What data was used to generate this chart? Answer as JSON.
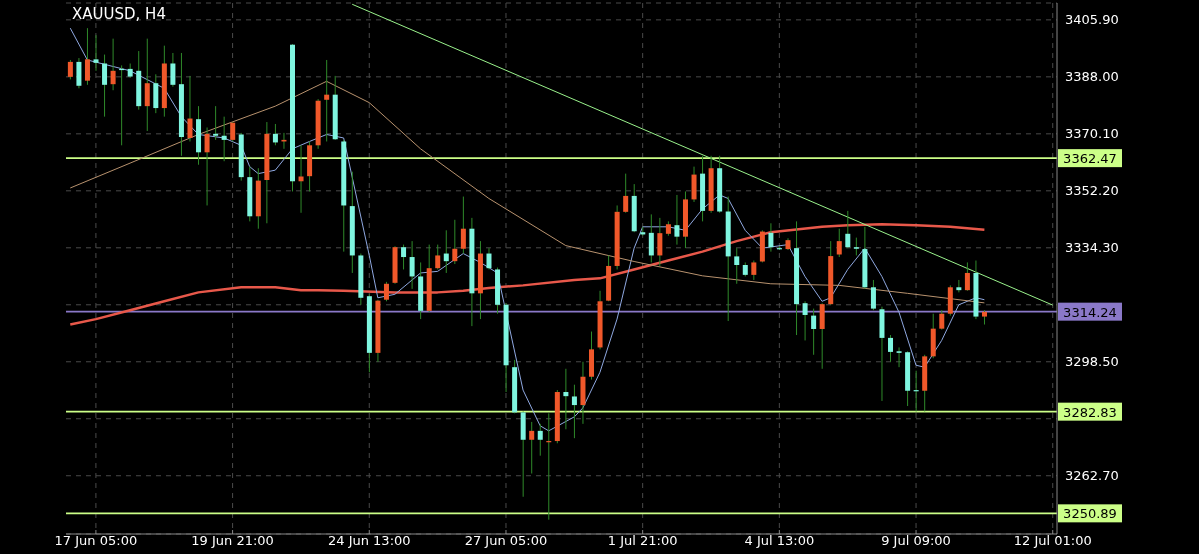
{
  "chart_data": {
    "type": "candlestick",
    "title": "XAUUSD, H4",
    "categories": [
      null,
      null,
      null,
      "17 Jun 05:00",
      null,
      null,
      null,
      null,
      null,
      null,
      null,
      null,
      null,
      null,
      null,
      null,
      null,
      null,
      null,
      "19 Jun 21:00",
      null,
      null,
      null,
      null,
      null,
      null,
      null,
      null,
      null,
      null,
      null,
      null,
      null,
      null,
      null,
      "24 Jun 13:00",
      null,
      null,
      null,
      null,
      null,
      null,
      null,
      null,
      null,
      null,
      null,
      null,
      null,
      null,
      null,
      "27 Jun 05:00",
      null,
      null,
      null,
      null,
      null,
      null,
      null,
      null,
      null,
      null,
      null,
      null,
      null,
      null,
      null,
      "1 Jul 21:00",
      null,
      null,
      null,
      null,
      null,
      null,
      null,
      null,
      null,
      null,
      null,
      null,
      null,
      null,
      null,
      "4 Jul 13:00",
      null,
      null,
      null,
      null,
      null,
      null,
      null,
      null,
      null,
      null,
      null,
      null,
      null,
      null,
      null,
      "9 Jul 09:00",
      null,
      null,
      null,
      null,
      null,
      null,
      null,
      null,
      null,
      null,
      null,
      null,
      null,
      null,
      null,
      "12 Jul 01:00"
    ],
    "ohlc": [
      [
        3388.0,
        3393.3,
        3387.2,
        3392.7
      ],
      [
        3392.7,
        3393.9,
        3384.4,
        3385.2
      ],
      [
        3386.8,
        3403.3,
        3385.5,
        3393.5
      ],
      [
        3393.5,
        3401.1,
        3389.9,
        3392.4
      ],
      [
        3392.2,
        3395.0,
        3375.5,
        3385.5
      ],
      [
        3385.7,
        3400.0,
        3383.8,
        3389.9
      ],
      [
        3390.5,
        3391.6,
        3366.5,
        3390.2
      ],
      [
        3390.5,
        3392.2,
        3387.7,
        3388.1
      ],
      [
        3389.9,
        3396.1,
        3377.7,
        3378.8
      ],
      [
        3378.8,
        3400.0,
        3371.0,
        3386.0
      ],
      [
        3386.0,
        3388.8,
        3376.6,
        3378.2
      ],
      [
        3378.2,
        3397.8,
        3375.5,
        3392.2
      ],
      [
        3392.2,
        3395.5,
        3384.9,
        3385.5
      ],
      [
        3385.7,
        3395.5,
        3363.2,
        3369.1
      ],
      [
        3368.8,
        3388.3,
        3367.7,
        3374.9
      ],
      [
        3374.7,
        3378.8,
        3360.4,
        3364.3
      ],
      [
        3364.3,
        3372.1,
        3347.6,
        3370.1
      ],
      [
        3370.1,
        3378.8,
        3368.2,
        3369.5
      ],
      [
        3369.5,
        3375.5,
        3361.5,
        3368.2
      ],
      [
        3368.2,
        3373.8,
        3367.7,
        3373.6
      ],
      [
        3369.9,
        3370.4,
        3355.4,
        3356.5
      ],
      [
        3356.5,
        3359.8,
        3342.6,
        3344.2
      ],
      [
        3344.2,
        3359.3,
        3340.3,
        3355.4
      ],
      [
        3355.6,
        3373.8,
        3342.0,
        3370.1
      ],
      [
        3370.1,
        3373.2,
        3366.5,
        3367.4
      ],
      [
        3367.7,
        3370.4,
        3365.4,
        3368.2
      ],
      [
        3398.1,
        3398.3,
        3352.0,
        3355.2
      ],
      [
        3355.2,
        3366.5,
        3345.3,
        3356.7
      ],
      [
        3356.8,
        3367.7,
        3352.0,
        3366.5
      ],
      [
        3366.5,
        3381.0,
        3365.4,
        3380.5
      ],
      [
        3380.8,
        3393.3,
        3367.7,
        3382.4
      ],
      [
        3382.4,
        3388.3,
        3368.2,
        3368.4
      ],
      [
        3367.7,
        3368.2,
        3333.1,
        3347.6
      ],
      [
        3347.4,
        3358.2,
        3326.4,
        3331.9
      ],
      [
        3331.9,
        3332.5,
        3316.4,
        3318.6
      ],
      [
        3319.1,
        3319.7,
        3295.2,
        3301.3
      ],
      [
        3301.3,
        3318.0,
        3298.5,
        3317.7
      ],
      [
        3318.0,
        3323.6,
        3317.5,
        3323.0
      ],
      [
        3323.3,
        3334.8,
        3323.0,
        3334.5
      ],
      [
        3334.5,
        3335.3,
        3327.5,
        3331.4
      ],
      [
        3331.4,
        3336.4,
        3321.4,
        3325.3
      ],
      [
        3325.3,
        3329.7,
        3311.9,
        3314.5
      ],
      [
        3314.5,
        3335.3,
        3314.1,
        3327.9
      ],
      [
        3327.9,
        3335.3,
        3327.5,
        3331.9
      ],
      [
        3332.5,
        3339.8,
        3326.4,
        3330.1
      ],
      [
        3330.1,
        3343.1,
        3329.2,
        3334.0
      ],
      [
        3334.0,
        3350.4,
        3332.5,
        3340.3
      ],
      [
        3340.3,
        3343.7,
        3309.7,
        3320.0
      ],
      [
        3320.0,
        3336.4,
        3311.9,
        3332.5
      ],
      [
        3332.5,
        3334.2,
        3327.5,
        3327.9
      ],
      [
        3327.5,
        3328.1,
        3313.6,
        3316.4
      ],
      [
        3316.4,
        3316.9,
        3289.0,
        3297.4
      ],
      [
        3296.8,
        3299.1,
        3282.3,
        3282.6
      ],
      [
        3282.6,
        3282.9,
        3256.1,
        3274.0
      ],
      [
        3274.0,
        3279.6,
        3263.4,
        3276.8
      ],
      [
        3276.8,
        3279.0,
        3269.0,
        3274.0
      ],
      [
        3273.4,
        3282.3,
        3248.9,
        3273.6
      ],
      [
        3273.6,
        3289.6,
        3272.9,
        3289.0
      ],
      [
        3289.0,
        3296.3,
        3277.3,
        3287.7
      ],
      [
        3287.6,
        3291.3,
        3274.5,
        3284.9
      ],
      [
        3284.9,
        3298.5,
        3279.0,
        3293.8
      ],
      [
        3293.8,
        3308.0,
        3292.9,
        3302.4
      ],
      [
        3303.0,
        3320.8,
        3302.4,
        3317.5
      ],
      [
        3317.7,
        3331.9,
        3317.5,
        3328.6
      ],
      [
        3328.6,
        3347.6,
        3327.5,
        3345.6
      ],
      [
        3345.6,
        3357.6,
        3345.3,
        3350.6
      ],
      [
        3350.6,
        3354.3,
        3339.2,
        3339.5
      ],
      [
        3339.2,
        3340.9,
        3338.1,
        3338.5
      ],
      [
        3339.0,
        3344.8,
        3329.7,
        3331.9
      ],
      [
        3331.9,
        3343.7,
        3328.6,
        3338.9
      ],
      [
        3338.7,
        3342.6,
        3338.1,
        3341.7
      ],
      [
        3341.4,
        3350.9,
        3335.3,
        3337.8
      ],
      [
        3337.8,
        3352.0,
        3334.2,
        3349.5
      ],
      [
        3349.5,
        3359.8,
        3348.7,
        3357.3
      ],
      [
        3357.6,
        3363.2,
        3342.6,
        3345.9
      ],
      [
        3345.9,
        3363.2,
        3345.3,
        3359.3
      ],
      [
        3359.3,
        3363.2,
        3345.3,
        3345.7
      ],
      [
        3345.7,
        3350.4,
        3311.3,
        3331.6
      ],
      [
        3331.6,
        3334.2,
        3323.0,
        3328.9
      ],
      [
        3328.9,
        3329.7,
        3325.3,
        3325.8
      ],
      [
        3325.8,
        3330.3,
        3324.2,
        3329.7
      ],
      [
        3330.0,
        3339.8,
        3329.7,
        3339.4
      ],
      [
        3339.0,
        3342.0,
        3333.1,
        3334.5
      ],
      [
        3334.2,
        3334.8,
        3333.6,
        3333.9
      ],
      [
        3333.9,
        3337.3,
        3333.6,
        3336.7
      ],
      [
        3334.2,
        3342.6,
        3306.9,
        3316.6
      ],
      [
        3316.9,
        3317.5,
        3305.2,
        3313.2
      ],
      [
        3313.0,
        3315.2,
        3300.7,
        3308.8
      ],
      [
        3308.8,
        3316.9,
        3296.3,
        3316.6
      ],
      [
        3316.6,
        3336.4,
        3316.4,
        3331.7
      ],
      [
        3332.2,
        3340.3,
        3331.4,
        3336.4
      ],
      [
        3338.7,
        3345.9,
        3334.2,
        3334.5
      ],
      [
        3334.5,
        3337.5,
        3331.9,
        3334.0
      ],
      [
        3333.9,
        3340.9,
        3321.4,
        3321.9
      ],
      [
        3321.9,
        3324.2,
        3314.7,
        3315.2
      ],
      [
        3315.0,
        3315.8,
        3286.2,
        3306.0
      ],
      [
        3306.0,
        3306.9,
        3298.5,
        3301.6
      ],
      [
        3301.8,
        3303.0,
        3296.8,
        3301.3
      ],
      [
        3301.5,
        3301.8,
        3284.6,
        3289.4
      ],
      [
        3289.6,
        3295.7,
        3282.9,
        3289.4
      ],
      [
        3289.4,
        3300.7,
        3282.9,
        3300.2
      ],
      [
        3300.2,
        3313.6,
        3299.6,
        3308.9
      ],
      [
        3308.9,
        3314.7,
        3308.6,
        3313.6
      ],
      [
        3313.6,
        3322.5,
        3313.0,
        3321.9
      ],
      [
        3321.9,
        3324.2,
        3320.3,
        3321.0
      ],
      [
        3321.0,
        3329.7,
        3320.8,
        3326.4
      ],
      [
        3326.4,
        3330.3,
        3311.9,
        3312.7
      ],
      [
        3312.7,
        3314.7,
        3310.2,
        3314.2
      ],
      null,
      null,
      null,
      null,
      null,
      null,
      null,
      null
    ],
    "colors": [
      "#f0582a",
      "#7ff5e0",
      "#f0582a",
      "#7ff5e0",
      "#7ff5e0",
      "#f0582a",
      "#7ff5e0",
      "#7ff5e0",
      "#7ff5e0",
      "#f0582a",
      "#7ff5e0",
      "#f0582a",
      "#7ff5e0",
      "#7ff5e0",
      "#f0582a",
      "#7ff5e0",
      "#f0582a",
      "#7ff5e0",
      "#7ff5e0",
      "#f0582a",
      "#7ff5e0",
      "#7ff5e0",
      "#f0582a",
      "#f0582a",
      "#7ff5e0",
      "#f0582a",
      "#7ff5e0",
      "#f0582a",
      "#f0582a",
      "#f0582a",
      "#f0582a",
      "#7ff5e0",
      "#7ff5e0",
      "#7ff5e0",
      "#7ff5e0",
      "#7ff5e0",
      "#f0582a",
      "#f0582a",
      "#f0582a",
      "#7ff5e0",
      "#7ff5e0",
      "#7ff5e0",
      "#f0582a",
      "#f0582a",
      "#7ff5e0",
      "#f0582a",
      "#f0582a",
      "#7ff5e0",
      "#f0582a",
      "#7ff5e0",
      "#7ff5e0",
      "#7ff5e0",
      "#7ff5e0",
      "#7ff5e0",
      "#f0582a",
      "#7ff5e0",
      "#f0582a",
      "#f0582a",
      "#7ff5e0",
      "#7ff5e0",
      "#f0582a",
      "#f0582a",
      "#f0582a",
      "#f0582a",
      "#f0582a",
      "#f0582a",
      "#7ff5e0",
      "#7ff5e0",
      "#7ff5e0",
      "#f0582a",
      "#f0582a",
      "#7ff5e0",
      "#f0582a",
      "#f0582a",
      "#7ff5e0",
      "#f0582a",
      "#7ff5e0",
      "#7ff5e0",
      "#7ff5e0",
      "#7ff5e0",
      "#f0582a",
      "#f0582a",
      "#7ff5e0",
      "#7ff5e0",
      "#f0582a",
      "#7ff5e0",
      "#7ff5e0",
      "#7ff5e0",
      "#f0582a",
      "#f0582a",
      "#f0582a",
      "#7ff5e0",
      "#7ff5e0",
      "#7ff5e0",
      "#7ff5e0",
      "#7ff5e0",
      "#7ff5e0",
      "#7ff5e0",
      "#7ff5e0",
      "#7ff5e0",
      "#f0582a",
      "#f0582a",
      "#f0582a",
      "#f0582a",
      "#7ff5e0",
      "#f0582a",
      "#7ff5e0",
      "#f0582a",
      null,
      null,
      null,
      null,
      null,
      null,
      null,
      null
    ],
    "series": [
      {
        "type": "line",
        "color": "#e8584a",
        "values": [
          3310.2,
          null,
          null,
          3311.9,
          null,
          null,
          null,
          3314.7,
          null,
          null,
          null,
          3317.5,
          null,
          null,
          null,
          3320.3,
          null,
          null,
          null,
          null,
          3321.9,
          null,
          null,
          null,
          3321.9,
          null,
          null,
          3321.0,
          null,
          3321.0,
          null,
          null,
          3320.8,
          null,
          null,
          null,
          null,
          null,
          3320.3,
          null,
          null,
          null,
          null,
          3320.3,
          null,
          null,
          3320.8,
          null,
          null,
          3321.7,
          null,
          null,
          null,
          3322.5,
          null,
          null,
          null,
          null,
          null,
          3324.2,
          null,
          null,
          3324.7,
          null,
          null,
          null,
          3327.5,
          null,
          null,
          null,
          3330.3,
          null,
          null,
          null,
          3333.1,
          null,
          null,
          null,
          3336.4,
          null,
          null,
          null,
          3339.2,
          null,
          null,
          null,
          null,
          null,
          3340.9,
          null,
          null,
          3341.4,
          null,
          null,
          null,
          3341.7,
          null,
          null,
          null,
          3341.4,
          null,
          null,
          null,
          3340.9,
          null,
          null,
          null,
          3340.0,
          null,
          null,
          null,
          null,
          null,
          null,
          null,
          null
        ]
      },
      {
        "type": "line",
        "color": "#8fa8e0",
        "values": [
          3403.3,
          null,
          3393.3,
          null,
          null,
          null,
          null,
          3389.9,
          null,
          null,
          null,
          3384.4,
          null,
          3375.5,
          null,
          3369.9,
          null,
          null,
          3368.8,
          null,
          3366.5,
          3359.8,
          3357.6,
          null,
          3358.7,
          null,
          3365.4,
          null,
          3367.7,
          null,
          3369.9,
          null,
          3368.8,
          3356.5,
          null,
          3331.9,
          3318.6,
          null,
          3319.7,
          null,
          null,
          3326.4,
          null,
          3326.9,
          null,
          null,
          3332.5,
          null,
          3329.7,
          null,
          3326.4,
          null,
          null,
          3289.6,
          null,
          3278.4,
          3276.8,
          null,
          null,
          3281.2,
          3284.0,
          null,
          3295.2,
          null,
          3311.9,
          null,
          3334.2,
          3340.9,
          null,
          null,
          3340.9,
          null,
          3339.8,
          null,
          3346.5,
          null,
          3350.9,
          3349.8,
          null,
          3339.8,
          null,
          3334.2,
          null,
          null,
          3335.3,
          null,
          3325.3,
          null,
          3317.5,
          3318.6,
          null,
          3327.5,
          null,
          3334.2,
          null,
          3325.3,
          null,
          3314.1,
          null,
          3297.4,
          3296.8,
          null,
          3305.2,
          null,
          3316.4,
          null,
          3318.6,
          3318.0,
          null,
          null,
          null,
          null,
          null,
          null,
          null,
          null
        ]
      },
      {
        "type": "line",
        "color": "#b8926e",
        "values": [
          3353.1,
          null,
          null,
          null,
          null,
          null,
          null,
          3360.9,
          null,
          null,
          null,
          null,
          null,
          null,
          null,
          3369.9,
          null,
          null,
          null,
          null,
          null,
          null,
          null,
          null,
          3378.8,
          null,
          null,
          null,
          null,
          null,
          3386.6,
          null,
          null,
          null,
          null,
          3379.9,
          null,
          null,
          null,
          null,
          null,
          3365.4,
          null,
          null,
          null,
          null,
          null,
          null,
          null,
          3349.8,
          null,
          null,
          null,
          null,
          null,
          null,
          null,
          null,
          3335.0,
          null,
          null,
          null,
          null,
          null,
          null,
          null,
          3330.0,
          null,
          null,
          null,
          null,
          null,
          null,
          null,
          3325.5,
          null,
          null,
          null,
          null,
          null,
          null,
          null,
          3323.0,
          null,
          null,
          null,
          null,
          null,
          null,
          null,
          3322.5,
          null,
          null,
          null,
          null,
          null,
          null,
          null,
          3320.0,
          null,
          null,
          null,
          null,
          null,
          null,
          null,
          null,
          3317.0,
          null,
          null,
          null,
          null,
          null,
          null,
          null,
          null
        ]
      },
      {
        "type": "line",
        "color": "#9af28c",
        "values": [
          null,
          null,
          null,
          null,
          null,
          null,
          null,
          null,
          null,
          null,
          null,
          null,
          null,
          null,
          null,
          null,
          null,
          null,
          null,
          null,
          null,
          null,
          null,
          null,
          null,
          null,
          null,
          null,
          null,
          null,
          null,
          null,
          null,
          3410.8,
          null,
          null,
          null,
          null,
          null,
          null,
          null,
          null,
          null,
          null,
          null,
          null,
          null,
          null,
          null,
          null,
          null,
          null,
          null,
          null,
          null,
          null,
          null,
          null,
          null,
          null,
          null,
          null,
          null,
          null,
          null,
          null,
          null,
          null,
          null,
          null,
          null,
          null,
          null,
          null,
          null,
          null,
          null,
          null,
          null,
          null,
          null,
          null,
          null,
          null,
          null,
          null,
          null,
          null,
          null,
          null,
          null,
          null,
          null,
          null,
          null,
          null,
          null,
          null,
          null,
          null,
          null,
          null,
          null,
          null,
          null,
          null,
          null,
          null,
          null,
          null,
          null,
          null,
          null,
          null,
          null,
          3316.3
        ]
      }
    ],
    "ylim": [
      3244.4,
      3411.2
    ],
    "yticks": [
      {
        "value": 3405.9,
        "label": "3405.90"
      },
      {
        "value": 3388.0,
        "label": "3388.00"
      },
      {
        "value": 3370.1,
        "label": "3370.10"
      },
      {
        "value": 3352.2,
        "label": "3352.20"
      },
      {
        "value": 3334.3,
        "label": "3334.30"
      },
      {
        "value": 3316.4,
        "label": null
      },
      {
        "value": 3298.5,
        "label": "3298.50"
      },
      {
        "value": 3280.6,
        "label": null
      },
      {
        "value": 3262.7,
        "label": "3262.70"
      }
    ],
    "ref_lines": [
      {
        "axis": "y",
        "value": 3362.47,
        "label": "3362.47",
        "color": "#ccff88"
      },
      {
        "axis": "y",
        "value": 3314.24,
        "label": "3314.24",
        "color": "#8a78c8"
      },
      {
        "axis": "y",
        "value": 3282.83,
        "label": "3282.83",
        "color": "#ccff88"
      },
      {
        "axis": "y",
        "value": 3250.89,
        "label": "3250.89",
        "color": "#ccff88"
      }
    ],
    "grid": true
  }
}
